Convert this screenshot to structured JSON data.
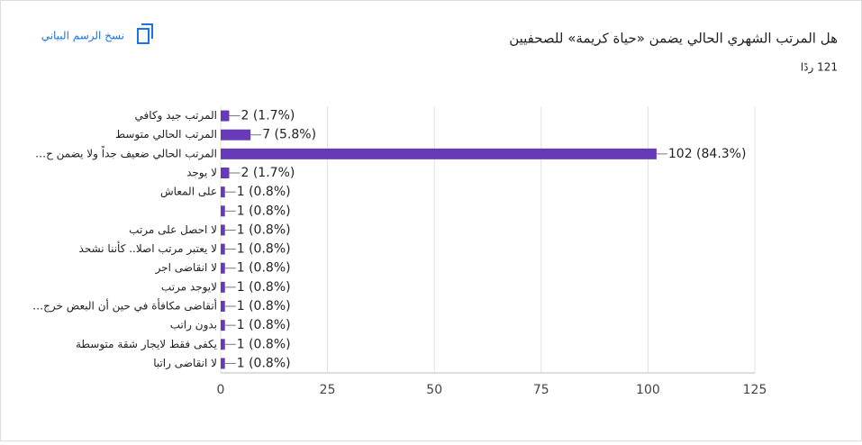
{
  "chart_data": {
    "type": "bar",
    "orientation": "horizontal",
    "title": "هل المرتب الشهري الحالي يضمن «حياة كريمة» للصحفيين",
    "subtitle": "121 ردًا",
    "copy_button": "نسخ الرسم البياني",
    "categories": [
      "المرتب جيد وكافي",
      "المرتب الحالي متوسط",
      "المرتب الحالي ضعيف جداً ولا يضمن ح…",
      "لا يوجد",
      "على المعاش",
      null,
      "لا احصل على مرتب",
      "لا يعتبر مرتب اصلا.. كأننا نشحذ",
      "لا انقاضى اجر",
      "لايوجد مرتب",
      "أتقاضى مكافأة في حين أن البعض خرج…",
      "بدون راتب",
      "يكفى فقط لايجار شقة متوسطة",
      "لا انقاضى راتبا"
    ],
    "values": [
      2,
      7,
      102,
      2,
      1,
      1,
      1,
      1,
      1,
      1,
      1,
      1,
      1,
      1
    ],
    "value_labels": [
      "2 (1.7%)",
      "7 (5.8%)",
      "102 (84.3%)",
      "2 (1.7%)",
      "1 (0.8%)",
      "1 (0.8%)",
      "1 (0.8%)",
      "1 (0.8%)",
      "1 (0.8%)",
      "1 (0.8%)",
      "1 (0.8%)",
      "1 (0.8%)",
      "1 (0.8%)",
      "1 (0.8%)"
    ],
    "color": "#673ab7",
    "xlim": [
      0,
      125
    ],
    "xticks": [
      0,
      25,
      50,
      75,
      100,
      125
    ],
    "grid": true
  }
}
